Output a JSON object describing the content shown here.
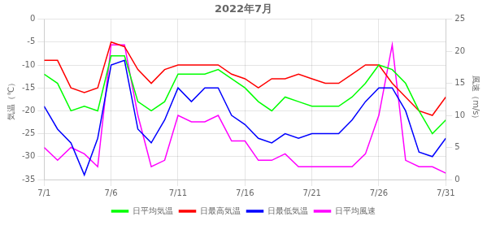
{
  "chart_data": {
    "type": "line",
    "title": "2022年7月",
    "x": [
      1,
      2,
      3,
      4,
      5,
      6,
      7,
      8,
      9,
      10,
      11,
      12,
      13,
      14,
      15,
      16,
      17,
      18,
      19,
      20,
      21,
      22,
      23,
      24,
      25,
      26,
      27,
      28,
      29,
      30,
      31
    ],
    "xlim": [
      1,
      31
    ],
    "xticks": [
      {
        "value": 1,
        "label": "7/1"
      },
      {
        "value": 6,
        "label": "7/6"
      },
      {
        "value": 11,
        "label": "7/11"
      },
      {
        "value": 16,
        "label": "7/16"
      },
      {
        "value": 21,
        "label": "7/21"
      },
      {
        "value": 26,
        "label": "7/26"
      },
      {
        "value": 31,
        "label": "7/31"
      }
    ],
    "ylabel": "気温（℃）",
    "ylim": [
      -35,
      0
    ],
    "yticks": [
      0,
      -5,
      -10,
      -15,
      -20,
      -25,
      -30,
      -35
    ],
    "y2label": "風速（m/s）",
    "y2lim": [
      0,
      25
    ],
    "y2ticks": [
      0,
      5,
      10,
      15,
      20,
      25
    ],
    "grid": true,
    "legend": "bottom",
    "series": [
      {
        "name": "日平均気温",
        "color": "#00ff00",
        "values": [
          -12,
          -14,
          -20,
          -19,
          -20,
          -8,
          -8,
          -18,
          -20,
          -18,
          -12,
          -12,
          -12,
          -11,
          -13,
          -15,
          -18,
          -20,
          -17,
          -18,
          -19,
          -19,
          -19,
          -17,
          -14,
          -10,
          -11,
          -14,
          -20,
          -25,
          -22
        ]
      },
      {
        "name": "日最高気温",
        "color": "#ff0000",
        "values": [
          -9,
          -9,
          -15,
          -16,
          -15,
          -5,
          -6,
          -11,
          -14,
          -11,
          -10,
          -10,
          -10,
          -10,
          -12,
          -13,
          -15,
          -13,
          -13,
          -12,
          -13,
          -14,
          -14,
          -12,
          -10,
          -10,
          -14,
          -17,
          -20,
          -21,
          -17
        ]
      },
      {
        "name": "日最低気温",
        "color": "#0000ff",
        "values": [
          -19,
          -24,
          -27,
          -34,
          -26,
          -10,
          -9,
          -24,
          -27,
          -22,
          -15,
          -18,
          -15,
          -15,
          -21,
          -23,
          -26,
          -27,
          -25,
          -26,
          -25,
          -25,
          -25,
          -22,
          -18,
          -15,
          -15,
          -20,
          -29,
          -30,
          -26
        ]
      },
      {
        "name": "日平均風速",
        "color": "#ff00ff",
        "axis": "y2",
        "values": [
          5,
          3,
          5,
          4,
          2,
          21,
          21,
          10,
          2,
          3,
          10,
          9,
          9,
          10,
          6,
          6,
          3,
          3,
          4,
          2,
          2,
          2,
          2,
          2,
          4,
          10,
          21,
          3,
          2,
          2,
          1
        ]
      }
    ]
  }
}
